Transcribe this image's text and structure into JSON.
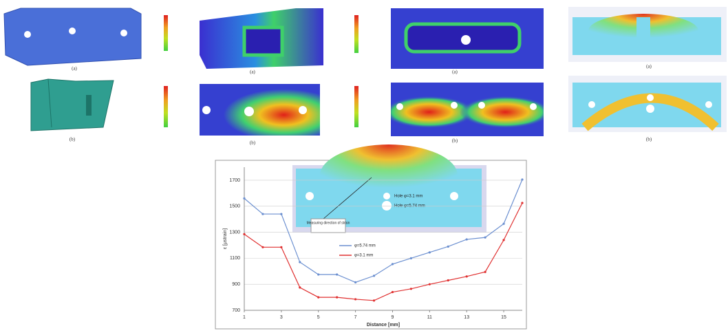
{
  "panels": [
    {
      "labels": [
        "(a)",
        "(b)"
      ]
    },
    {
      "labels": [
        "(a)",
        "(b)"
      ]
    },
    {
      "labels": [
        "(a)",
        "(b)"
      ]
    },
    {
      "labels": [
        "(a)",
        "(b)"
      ]
    }
  ],
  "chart_data": {
    "type": "line",
    "x_label": "Distance [mm]",
    "y_label": "ε [μstrain]",
    "annotations": [
      "Measuring direction of strain",
      "Hole φ=3.1 mm",
      "Hole φ=5.74 mm"
    ],
    "x": [
      1,
      2,
      3,
      4,
      5,
      6,
      7,
      8,
      9,
      10,
      11,
      12,
      13,
      14,
      15,
      16
    ],
    "series": [
      {
        "name": "φ=5.74 mm",
        "color": "#6b8fd0",
        "values": [
          1560,
          1440,
          1440,
          1070,
          975,
          975,
          915,
          965,
          1055,
          1100,
          1145,
          1190,
          1245,
          1260,
          1365,
          1705
        ]
      },
      {
        "name": "φ=3.1 mm",
        "color": "#e03030",
        "values": [
          1285,
          1185,
          1185,
          875,
          800,
          800,
          785,
          775,
          840,
          865,
          900,
          930,
          960,
          995,
          1240,
          1525
        ]
      }
    ],
    "xlim": [
      1,
      16
    ],
    "xticks": [
      1,
      3,
      5,
      7,
      9,
      11,
      13,
      15
    ],
    "ylim": [
      700,
      1800
    ],
    "yticks": [
      700,
      900,
      1100,
      1300,
      1500,
      1700
    ],
    "grid": true,
    "legend": "center"
  }
}
